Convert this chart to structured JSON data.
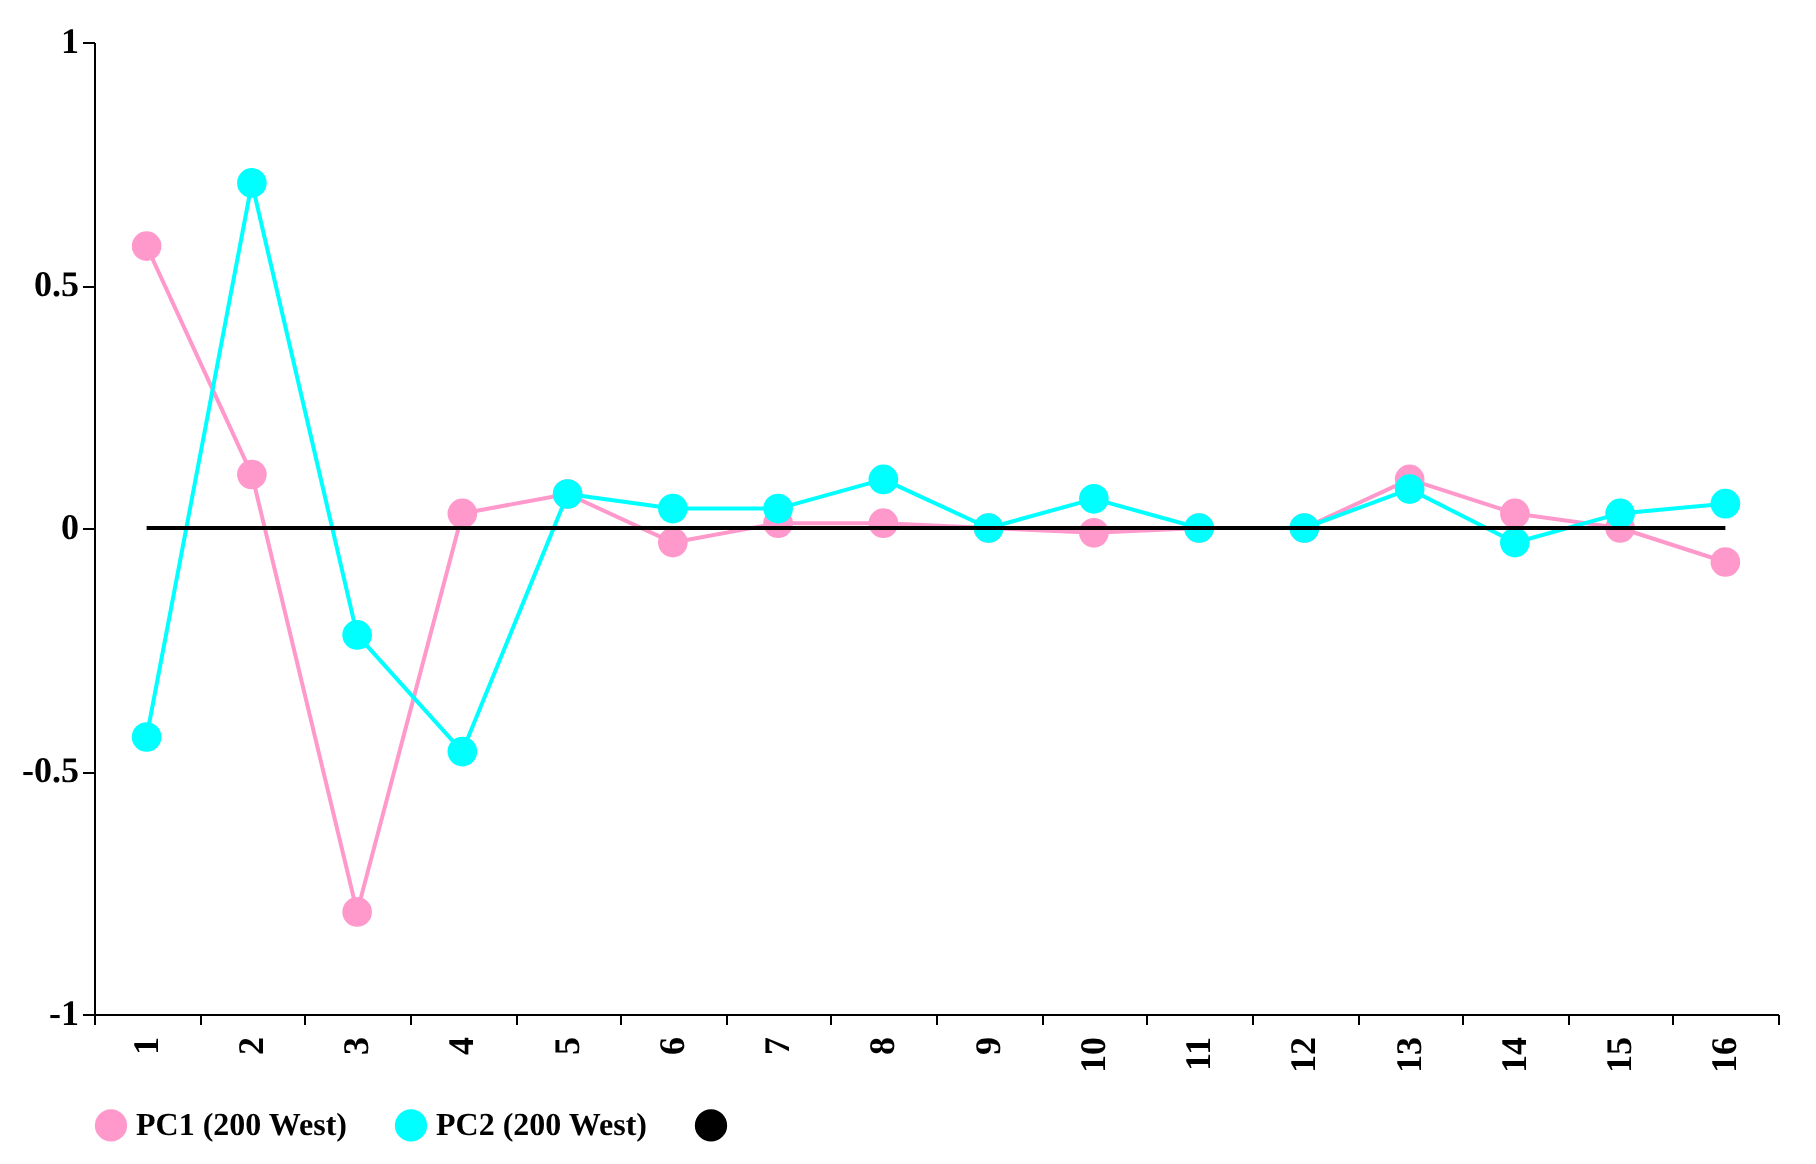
{
  "chart_data": {
    "type": "line",
    "categories": [
      "1",
      "2",
      "3",
      "4",
      "5",
      "6",
      "7",
      "8",
      "9",
      "10",
      "11",
      "12",
      "13",
      "14",
      "15",
      "16"
    ],
    "series": [
      {
        "name": "PC1 (200 West)",
        "color": "#ff99cc",
        "marker": "circle",
        "values": [
          0.58,
          0.11,
          -0.79,
          0.03,
          0.07,
          -0.03,
          0.01,
          0.01,
          0,
          -0.01,
          0,
          0,
          0.1,
          0.03,
          0,
          -0.07
        ]
      },
      {
        "name": "PC2 (200 West)",
        "color": "#00ffff",
        "marker": "circle",
        "values": [
          -0.43,
          0.71,
          -0.22,
          -0.46,
          0.07,
          0.04,
          0.04,
          0.1,
          0,
          0.06,
          0,
          0,
          0.08,
          -0.03,
          0.03,
          0.05
        ]
      },
      {
        "color": "#000000",
        "marker": "none",
        "values": [
          0,
          0,
          0,
          0,
          0,
          0,
          0,
          0,
          0,
          0,
          0,
          0,
          0,
          0,
          0,
          0
        ]
      }
    ],
    "ylim": [
      -1,
      1
    ],
    "yticks": [
      -1,
      -0.5,
      0,
      0.5,
      1
    ],
    "grid": false,
    "legend": "bottom"
  }
}
